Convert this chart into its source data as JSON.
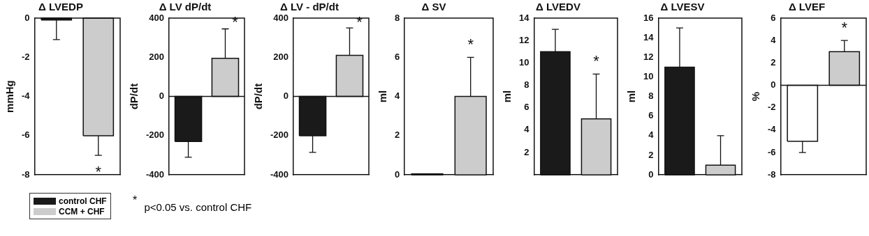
{
  "chart_data": [
    {
      "type": "bar",
      "title": "Δ LVEDP",
      "ylabel": "mmHg",
      "categories": [
        null
      ],
      "ylim": [
        -8,
        0
      ],
      "yticks": [
        -8,
        -6,
        -4,
        -2,
        0
      ],
      "legend": "bottom left",
      "series": [
        {
          "name": "control CHF",
          "color": "#1a1a1a",
          "values": [
            -0.1
          ],
          "errors": [
            [
              -1.1,
              -0.1
            ]
          ]
        },
        {
          "name": "CCM + CHF",
          "color": "#cccccc",
          "values": [
            -6
          ],
          "errors": [
            [
              -7,
              -6
            ]
          ]
        }
      ],
      "annotations": [
        "*",
        "$^{*}$ p<0.05 vs. control CHF"
      ]
    },
    {
      "type": "bar",
      "title": "Δ LV dP/dt",
      "ylabel": "dP/dt",
      "categories": [
        null
      ],
      "ylim": [
        -400,
        400
      ],
      "yticks": [
        -400,
        -200,
        0,
        200,
        400
      ],
      "series": [
        {
          "color": "#1a1a1a",
          "values": [
            -230
          ],
          "errors": [
            [
              -310,
              -230
            ]
          ]
        },
        {
          "color": "#cccccc",
          "values": [
            195
          ],
          "errors": [
            [
              195,
              345
            ]
          ]
        }
      ],
      "annotations": [
        "*"
      ]
    },
    {
      "type": "bar",
      "title": "Δ LV - dP/dt",
      "ylabel": "dP/dt",
      "categories": [
        null
      ],
      "ylim": [
        -400,
        400
      ],
      "yticks": [
        -400,
        -200,
        0,
        200,
        400
      ],
      "series": [
        {
          "color": "#1a1a1a",
          "values": [
            -200
          ],
          "errors": [
            [
              -285,
              -200
            ]
          ]
        },
        {
          "color": "#cccccc",
          "values": [
            210
          ],
          "errors": [
            [
              210,
              350
            ]
          ]
        }
      ],
      "annotations": [
        "*"
      ]
    },
    {
      "type": "bar",
      "title": "Δ SV",
      "ylabel": "ml",
      "categories": [
        null
      ],
      "ylim": [
        0,
        8
      ],
      "yticks": [
        0,
        2,
        4,
        6,
        8
      ],
      "series": [
        {
          "color": "#1a1a1a",
          "values": [
            0.05
          ]
        },
        {
          "color": "#cccccc",
          "values": [
            4
          ],
          "errors": [
            [
              4,
              6
            ]
          ]
        }
      ],
      "annotations": [
        "*"
      ]
    },
    {
      "type": "bar",
      "title": "Δ LVEDV",
      "ylabel": "ml",
      "categories": [
        null
      ],
      "ylim": [
        0,
        14
      ],
      "yticks": [
        2,
        4,
        6,
        8,
        10,
        12,
        14
      ],
      "series": [
        {
          "color": "#1a1a1a",
          "values": [
            11
          ],
          "errors": [
            [
              11,
              13
            ]
          ]
        },
        {
          "color": "#cccccc",
          "values": [
            5
          ],
          "errors": [
            [
              5,
              9
            ]
          ]
        }
      ],
      "annotations": [
        "*"
      ]
    },
    {
      "type": "bar",
      "title": "Δ LVESV",
      "ylabel": "ml",
      "categories": [
        null
      ],
      "ylim": [
        0,
        16
      ],
      "yticks": [
        0,
        2,
        4,
        6,
        8,
        10,
        12,
        14,
        16
      ],
      "series": [
        {
          "color": "#1a1a1a",
          "values": [
            11
          ],
          "errors": [
            [
              11,
              15
            ]
          ]
        },
        {
          "color": "#cccccc",
          "values": [
            1
          ],
          "errors": [
            [
              1,
              4
            ]
          ]
        }
      ]
    },
    {
      "type": "bar",
      "title": "Δ LVEF",
      "ylabel": "%",
      "categories": [
        null
      ],
      "ylim": [
        -8,
        6
      ],
      "yticks": [
        -8,
        -6,
        -4,
        -2,
        0,
        2,
        4,
        6
      ],
      "series": [
        {
          "color": "#ffffff",
          "values": [
            -5
          ],
          "errors": [
            [
              -6,
              -5
            ]
          ]
        },
        {
          "color": "#cccccc",
          "values": [
            3
          ],
          "errors": [
            [
              3,
              4
            ]
          ]
        }
      ],
      "annotations": [
        "*"
      ]
    }
  ]
}
